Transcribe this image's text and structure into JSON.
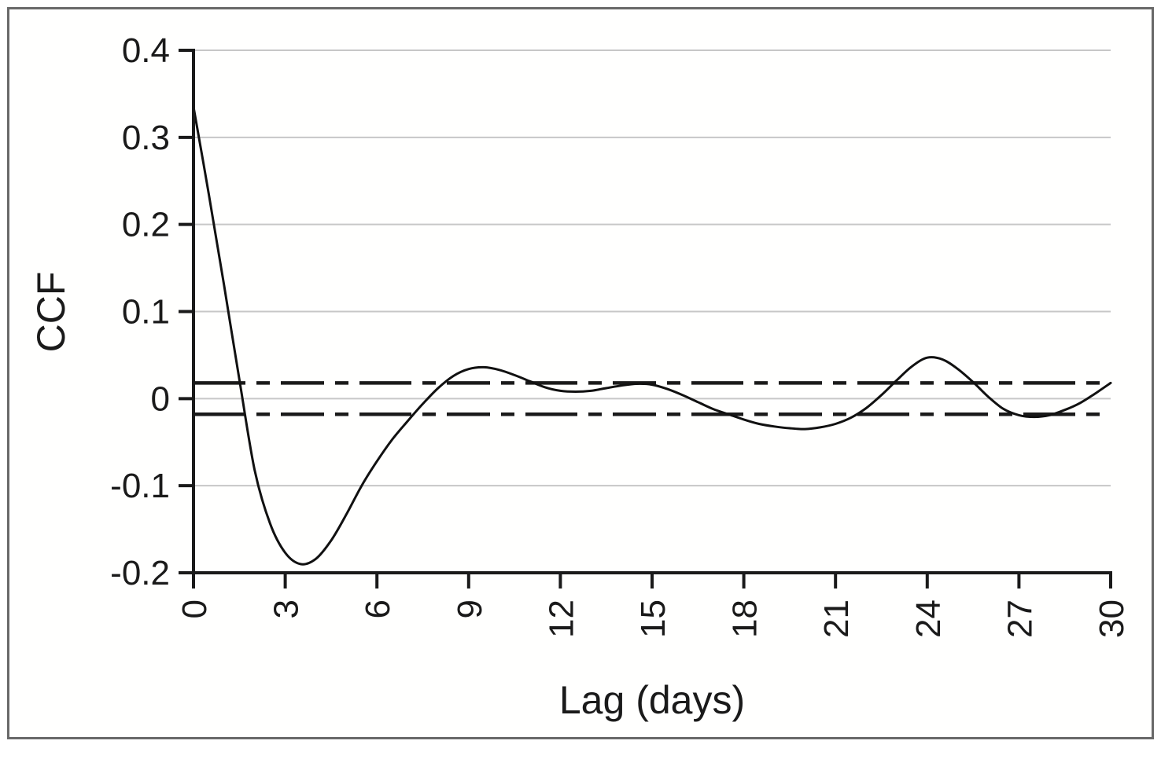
{
  "figure": {
    "background": "#ffffff",
    "frame_border_color": "#696969"
  },
  "chart_data": {
    "type": "line",
    "title": "",
    "xlabel": "Lag (days)",
    "ylabel": "CCF",
    "xlim": [
      0,
      30
    ],
    "ylim": [
      -0.2,
      0.4
    ],
    "grid": "horizontal",
    "gridline_values": [
      0.4,
      0.3,
      0.2,
      0.1,
      0,
      -0.1
    ],
    "gridline_color": "#c7c7c7",
    "xticks": [
      0,
      3,
      6,
      9,
      12,
      15,
      18,
      21,
      24,
      27,
      30
    ],
    "xtick_labels": [
      "0",
      "3",
      "6",
      "9",
      "12",
      "15",
      "18",
      "21",
      "24",
      "27",
      "30"
    ],
    "xtick_label_rotation_deg": -90,
    "yticks": [
      0.4,
      0.3,
      0.2,
      0.1,
      0,
      -0.1,
      -0.2
    ],
    "ytick_labels": [
      "0.4",
      "0.3",
      "0.2",
      "0.1",
      "0",
      "-0.1",
      "-0.2"
    ],
    "axis_color": "#1a1a1a",
    "line_color": "#111111",
    "legend": "none",
    "confidence_bounds": {
      "upper": 0.018,
      "lower": -0.018,
      "style": "dash-dot",
      "color": "#1a1a1a"
    },
    "series": [
      {
        "name": "CCF",
        "points": [
          [
            0.0,
            0.335
          ],
          [
            0.5,
            0.235
          ],
          [
            1.0,
            0.13
          ],
          [
            1.5,
            0.022
          ],
          [
            2.0,
            -0.082
          ],
          [
            2.5,
            -0.143
          ],
          [
            3.0,
            -0.177
          ],
          [
            3.5,
            -0.19
          ],
          [
            4.0,
            -0.184
          ],
          [
            4.5,
            -0.163
          ],
          [
            5.0,
            -0.133
          ],
          [
            5.5,
            -0.1
          ],
          [
            6.0,
            -0.072
          ],
          [
            6.5,
            -0.047
          ],
          [
            7.0,
            -0.026
          ],
          [
            7.5,
            -0.006
          ],
          [
            8.0,
            0.012
          ],
          [
            8.5,
            0.026
          ],
          [
            9.0,
            0.034
          ],
          [
            9.5,
            0.036
          ],
          [
            10.0,
            0.033
          ],
          [
            10.5,
            0.027
          ],
          [
            11.0,
            0.02
          ],
          [
            11.5,
            0.013
          ],
          [
            12.0,
            0.009
          ],
          [
            12.5,
            0.008
          ],
          [
            13.0,
            0.009
          ],
          [
            13.5,
            0.012
          ],
          [
            14.0,
            0.015
          ],
          [
            14.5,
            0.017
          ],
          [
            15.0,
            0.016
          ],
          [
            15.5,
            0.011
          ],
          [
            16.0,
            0.004
          ],
          [
            16.5,
            -0.004
          ],
          [
            17.0,
            -0.012
          ],
          [
            17.5,
            -0.018
          ],
          [
            18.0,
            -0.024
          ],
          [
            18.5,
            -0.029
          ],
          [
            19.0,
            -0.032
          ],
          [
            19.5,
            -0.034
          ],
          [
            20.0,
            -0.035
          ],
          [
            20.5,
            -0.033
          ],
          [
            21.0,
            -0.029
          ],
          [
            21.5,
            -0.022
          ],
          [
            22.0,
            -0.011
          ],
          [
            22.5,
            0.004
          ],
          [
            23.0,
            0.021
          ],
          [
            23.5,
            0.037
          ],
          [
            24.0,
            0.047
          ],
          [
            24.5,
            0.045
          ],
          [
            25.0,
            0.034
          ],
          [
            25.5,
            0.019
          ],
          [
            26.0,
            0.002
          ],
          [
            26.5,
            -0.012
          ],
          [
            27.0,
            -0.019
          ],
          [
            27.5,
            -0.021
          ],
          [
            28.0,
            -0.019
          ],
          [
            28.5,
            -0.013
          ],
          [
            29.0,
            -0.005
          ],
          [
            29.5,
            0.006
          ],
          [
            30.0,
            0.018
          ]
        ]
      }
    ]
  }
}
